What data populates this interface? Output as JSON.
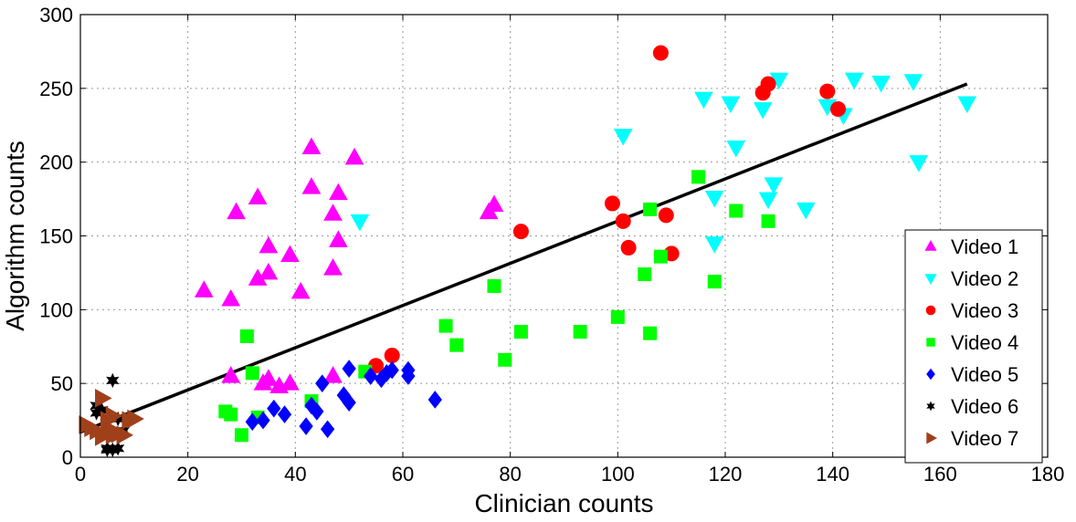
{
  "chart_data": {
    "type": "scatter",
    "xlabel": "Clinician counts",
    "ylabel": "Algorithm counts",
    "xlim": [
      0,
      180
    ],
    "ylim": [
      0,
      300
    ],
    "xticks": [
      0,
      20,
      40,
      60,
      80,
      100,
      120,
      140,
      160,
      180
    ],
    "yticks": [
      0,
      50,
      100,
      150,
      200,
      250,
      300
    ],
    "grid": true,
    "legend_position": "bottom-right",
    "fit_line": {
      "x": [
        0,
        165
      ],
      "y": [
        17,
        253
      ],
      "color": "#000000"
    },
    "series": [
      {
        "name": "Video 1",
        "marker": "triangle-up",
        "color": "#ff00ff",
        "points": [
          [
            23,
            113
          ],
          [
            28,
            107
          ],
          [
            29,
            166
          ],
          [
            33,
            176
          ],
          [
            35,
            143
          ],
          [
            35,
            125
          ],
          [
            33,
            121
          ],
          [
            39,
            137
          ],
          [
            41,
            112
          ],
          [
            43,
            210
          ],
          [
            43,
            183
          ],
          [
            47,
            128
          ],
          [
            48,
            147
          ],
          [
            48,
            179
          ],
          [
            47,
            165
          ],
          [
            51,
            203
          ],
          [
            76,
            166
          ],
          [
            77,
            171
          ],
          [
            28,
            55
          ],
          [
            34,
            50
          ],
          [
            35,
            53
          ],
          [
            37,
            48
          ],
          [
            39,
            50
          ],
          [
            47,
            55
          ]
        ]
      },
      {
        "name": "Video 2",
        "marker": "triangle-down",
        "color": "#00ffff",
        "points": [
          [
            52,
            160
          ],
          [
            101,
            218
          ],
          [
            116,
            243
          ],
          [
            118,
            176
          ],
          [
            118,
            145
          ],
          [
            121,
            240
          ],
          [
            122,
            210
          ],
          [
            127,
            236
          ],
          [
            128,
            175
          ],
          [
            129,
            185
          ],
          [
            130,
            256
          ],
          [
            135,
            168
          ],
          [
            139,
            238
          ],
          [
            142,
            232
          ],
          [
            144,
            256
          ],
          [
            149,
            254
          ],
          [
            155,
            255
          ],
          [
            156,
            200
          ],
          [
            165,
            240
          ]
        ]
      },
      {
        "name": "Video 3",
        "marker": "circle",
        "color": "#ff0000",
        "points": [
          [
            55,
            62
          ],
          [
            58,
            69
          ],
          [
            82,
            153
          ],
          [
            99,
            172
          ],
          [
            101,
            160
          ],
          [
            102,
            142
          ],
          [
            108,
            274
          ],
          [
            109,
            164
          ],
          [
            110,
            138
          ],
          [
            127,
            247
          ],
          [
            128,
            253
          ],
          [
            139,
            248
          ],
          [
            141,
            236
          ]
        ]
      },
      {
        "name": "Video 4",
        "marker": "square",
        "color": "#00ff00",
        "points": [
          [
            27,
            31
          ],
          [
            28,
            29
          ],
          [
            30,
            15
          ],
          [
            31,
            82
          ],
          [
            32,
            57
          ],
          [
            33,
            27
          ],
          [
            43,
            38
          ],
          [
            53,
            58
          ],
          [
            68,
            89
          ],
          [
            70,
            76
          ],
          [
            77,
            116
          ],
          [
            79,
            66
          ],
          [
            82,
            85
          ],
          [
            93,
            85
          ],
          [
            100,
            95
          ],
          [
            105,
            124
          ],
          [
            106,
            84
          ],
          [
            106,
            168
          ],
          [
            108,
            136
          ],
          [
            115,
            190
          ],
          [
            118,
            119
          ],
          [
            122,
            167
          ],
          [
            128,
            160
          ]
        ]
      },
      {
        "name": "Video 5",
        "marker": "diamond",
        "color": "#0000ff",
        "points": [
          [
            32,
            24
          ],
          [
            34,
            25
          ],
          [
            36,
            33
          ],
          [
            38,
            29
          ],
          [
            42,
            21
          ],
          [
            43,
            35
          ],
          [
            44,
            31
          ],
          [
            45,
            50
          ],
          [
            46,
            19
          ],
          [
            49,
            42
          ],
          [
            50,
            37
          ],
          [
            50,
            60
          ],
          [
            54,
            55
          ],
          [
            56,
            53
          ],
          [
            57,
            57
          ],
          [
            58,
            59
          ],
          [
            61,
            55
          ],
          [
            61,
            59
          ],
          [
            66,
            39
          ]
        ]
      },
      {
        "name": "Video 6",
        "marker": "star",
        "color": "#000000",
        "points": [
          [
            3,
            30
          ],
          [
            3,
            35
          ],
          [
            4,
            32
          ],
          [
            5,
            5
          ],
          [
            5,
            6
          ],
          [
            6,
            5
          ],
          [
            6,
            52
          ],
          [
            7,
            6
          ],
          [
            7,
            26
          ],
          [
            8,
            18
          ]
        ]
      },
      {
        "name": "Video 7",
        "marker": "triangle-right",
        "color": "#a0401a",
        "points": [
          [
            1,
            22
          ],
          [
            2,
            20
          ],
          [
            3,
            18
          ],
          [
            4,
            40
          ],
          [
            4,
            14
          ],
          [
            5,
            20
          ],
          [
            5,
            25
          ],
          [
            6,
            15
          ],
          [
            6,
            28
          ],
          [
            7,
            16
          ],
          [
            8,
            15
          ],
          [
            9,
            25
          ],
          [
            10,
            26
          ]
        ]
      }
    ]
  }
}
